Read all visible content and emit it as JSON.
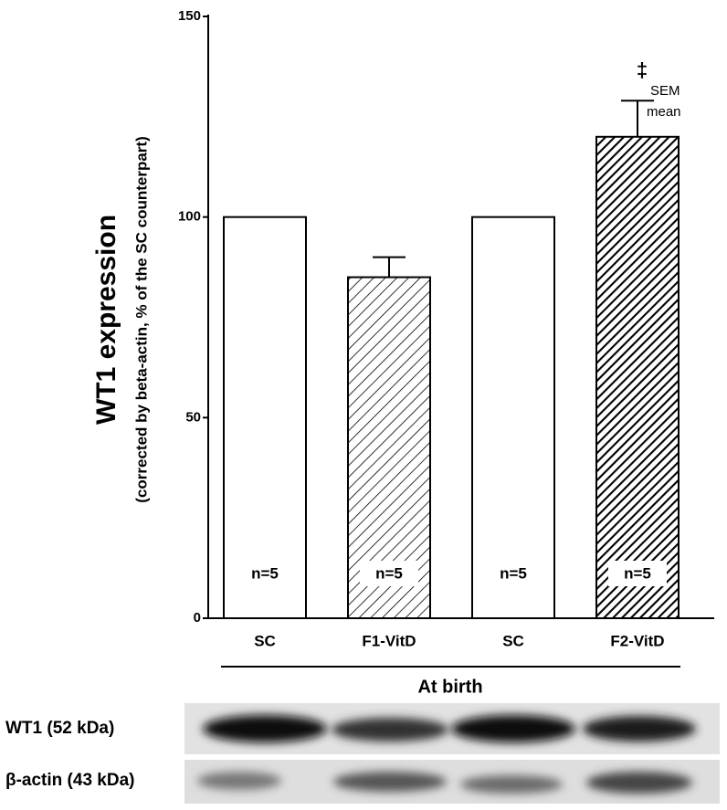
{
  "chart_data": {
    "type": "bar",
    "title": "WT1 expression",
    "subtitle": "(corrected by beta-actin, % of the SC counterpart)",
    "categories": [
      "SC",
      "F1-VitD",
      "SC",
      "F2-VitD"
    ],
    "values": [
      100,
      85,
      100,
      120
    ],
    "errors": [
      null,
      5,
      null,
      9
    ],
    "fills": [
      "white",
      "light-hatch",
      "white",
      "dense-hatch"
    ],
    "n_labels": [
      "n=5",
      "n=5",
      "n=5",
      "n=5"
    ],
    "ylim": [
      0,
      150
    ],
    "yticks": [
      0,
      50,
      100,
      150
    ],
    "annotations": {
      "significance": "‡",
      "error_label": "SEM",
      "bar_label": "mean"
    },
    "group_label": "At birth",
    "blot_labels": [
      "WT1 (52 kDa)",
      "β-actin (43 kDa)"
    ]
  }
}
